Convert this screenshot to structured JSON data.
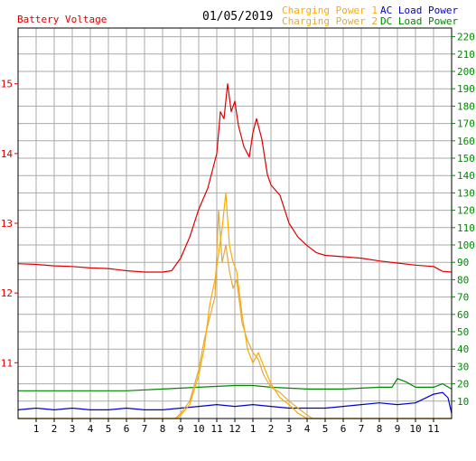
{
  "header": {
    "title": "Battery Voltage",
    "date": "01/05/2019",
    "legend": {
      "charging_power_1": "Charging Power 1",
      "charging_power_2": "Charging Power 2",
      "ac_load_power": "AC Load Power",
      "dc_load_power": "DC Load Power"
    }
  },
  "colors": {
    "battery_voltage": "#dd0000",
    "charging_power_1": "#ffaa00",
    "charging_power_2": "#ddaa44",
    "ac_load_power": "#0000cc",
    "dc_load_power": "#008800",
    "grid": "#aaaaaa",
    "axis": "#000000",
    "frame": "#000000"
  },
  "chart_data": {
    "type": "line",
    "x_ticks": [
      "1",
      "2",
      "3",
      "4",
      "5",
      "6",
      "7",
      "8",
      "9",
      "10",
      "11",
      "12",
      "1",
      "2",
      "3",
      "4",
      "5",
      "6",
      "7",
      "8",
      "9",
      "10",
      "11"
    ],
    "x_range": [
      0,
      24
    ],
    "grid": true,
    "left_axis": {
      "label": "Battery Voltage",
      "range": [
        10.2,
        15.8
      ],
      "ticks": [
        11,
        12,
        13,
        14,
        15
      ]
    },
    "right_axis": {
      "range": [
        0,
        225
      ],
      "ticks": [
        10,
        20,
        30,
        40,
        50,
        60,
        70,
        80,
        90,
        100,
        110,
        120,
        130,
        140,
        150,
        160,
        170,
        180,
        190,
        200,
        210,
        220
      ]
    },
    "series": [
      {
        "name": "Battery Voltage",
        "axis": "left",
        "points": [
          [
            0,
            12.42
          ],
          [
            1,
            12.41
          ],
          [
            2,
            12.39
          ],
          [
            3,
            12.38
          ],
          [
            4,
            12.36
          ],
          [
            5,
            12.35
          ],
          [
            6,
            12.32
          ],
          [
            7,
            12.3
          ],
          [
            8,
            12.3
          ],
          [
            8.5,
            12.32
          ],
          [
            9,
            12.5
          ],
          [
            9.5,
            12.8
          ],
          [
            10,
            13.2
          ],
          [
            10.5,
            13.5
          ],
          [
            11,
            14.0
          ],
          [
            11.2,
            14.6
          ],
          [
            11.4,
            14.5
          ],
          [
            11.6,
            15.0
          ],
          [
            11.8,
            14.6
          ],
          [
            12,
            14.75
          ],
          [
            12.2,
            14.4
          ],
          [
            12.5,
            14.1
          ],
          [
            12.8,
            13.95
          ],
          [
            13,
            14.3
          ],
          [
            13.2,
            14.5
          ],
          [
            13.5,
            14.2
          ],
          [
            13.8,
            13.7
          ],
          [
            14,
            13.55
          ],
          [
            14.5,
            13.4
          ],
          [
            15,
            13.0
          ],
          [
            15.5,
            12.8
          ],
          [
            16,
            12.68
          ],
          [
            16.5,
            12.58
          ],
          [
            17,
            12.54
          ],
          [
            18,
            12.52
          ],
          [
            19,
            12.5
          ],
          [
            20,
            12.46
          ],
          [
            21,
            12.43
          ],
          [
            22,
            12.4
          ],
          [
            23,
            12.38
          ],
          [
            23.5,
            12.31
          ],
          [
            24,
            12.3
          ]
        ]
      },
      {
        "name": "Charging Power 1",
        "axis": "right",
        "points": [
          [
            0,
            0
          ],
          [
            8.8,
            0
          ],
          [
            9,
            2
          ],
          [
            9.5,
            8
          ],
          [
            10,
            25
          ],
          [
            10.3,
            40
          ],
          [
            10.6,
            65
          ],
          [
            10.9,
            80
          ],
          [
            11.1,
            95
          ],
          [
            11.3,
            110
          ],
          [
            11.5,
            130
          ],
          [
            11.7,
            100
          ],
          [
            11.9,
            90
          ],
          [
            12.1,
            85
          ],
          [
            12.4,
            60
          ],
          [
            12.7,
            40
          ],
          [
            13,
            32
          ],
          [
            13.3,
            38
          ],
          [
            13.6,
            30
          ],
          [
            14,
            20
          ],
          [
            14.5,
            12
          ],
          [
            15,
            8
          ],
          [
            15.5,
            3
          ],
          [
            16,
            0
          ],
          [
            24,
            0
          ]
        ]
      },
      {
        "name": "Charging Power 2",
        "axis": "right",
        "points": [
          [
            0,
            0
          ],
          [
            8.7,
            0
          ],
          [
            9,
            3
          ],
          [
            9.5,
            10
          ],
          [
            10,
            28
          ],
          [
            10.3,
            45
          ],
          [
            10.6,
            58
          ],
          [
            10.9,
            70
          ],
          [
            11.1,
            120
          ],
          [
            11.3,
            90
          ],
          [
            11.5,
            100
          ],
          [
            11.7,
            85
          ],
          [
            11.9,
            75
          ],
          [
            12.1,
            80
          ],
          [
            12.4,
            55
          ],
          [
            12.7,
            45
          ],
          [
            13,
            38
          ],
          [
            13.3,
            34
          ],
          [
            13.6,
            25
          ],
          [
            14,
            18
          ],
          [
            14.5,
            15
          ],
          [
            15,
            10
          ],
          [
            15.5,
            6
          ],
          [
            16,
            2
          ],
          [
            16.3,
            0
          ],
          [
            24,
            0
          ]
        ]
      },
      {
        "name": "AC Load Power",
        "axis": "right",
        "points": [
          [
            0,
            5
          ],
          [
            1,
            6
          ],
          [
            2,
            5
          ],
          [
            3,
            6
          ],
          [
            4,
            5
          ],
          [
            5,
            5
          ],
          [
            6,
            6
          ],
          [
            7,
            5
          ],
          [
            8,
            5
          ],
          [
            9,
            6
          ],
          [
            10,
            7
          ],
          [
            11,
            8
          ],
          [
            12,
            7
          ],
          [
            13,
            8
          ],
          [
            14,
            7
          ],
          [
            15,
            6
          ],
          [
            16,
            6
          ],
          [
            17,
            6
          ],
          [
            18,
            7
          ],
          [
            19,
            8
          ],
          [
            20,
            9
          ],
          [
            21,
            8
          ],
          [
            22,
            9
          ],
          [
            23,
            14
          ],
          [
            23.5,
            15
          ],
          [
            23.8,
            12
          ],
          [
            24,
            3
          ]
        ]
      },
      {
        "name": "DC Load Power",
        "axis": "right",
        "points": [
          [
            0,
            16
          ],
          [
            2,
            16
          ],
          [
            4,
            16
          ],
          [
            6,
            16
          ],
          [
            8,
            17
          ],
          [
            10,
            18
          ],
          [
            12,
            19
          ],
          [
            13,
            19
          ],
          [
            14,
            18
          ],
          [
            16,
            17
          ],
          [
            18,
            17
          ],
          [
            20,
            18
          ],
          [
            20.7,
            18
          ],
          [
            21,
            23
          ],
          [
            21.5,
            21
          ],
          [
            22,
            18
          ],
          [
            23,
            18
          ],
          [
            23.5,
            20
          ],
          [
            24,
            17
          ]
        ]
      }
    ]
  }
}
